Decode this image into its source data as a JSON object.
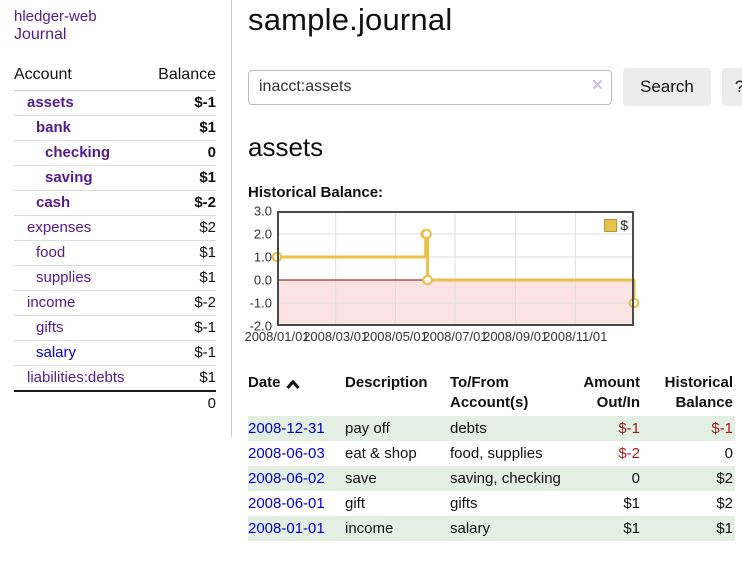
{
  "theme": {
    "purple": "#551a8b",
    "blue": "#0000cc",
    "negative": "#9d1d1d",
    "negative_muted": "#c08585",
    "row_green": "#e2efe2",
    "button_bg": "#ececec",
    "gold": "#e8c14b"
  },
  "sidebar": {
    "brand": "hledger-web",
    "nav_journal": "Journal",
    "accounts": {
      "header_account": "Account",
      "header_balance": "Balance",
      "rows": [
        {
          "account": "assets",
          "balance": "$-1",
          "level": 1,
          "bold": true,
          "account_class": "purple",
          "balance_class": "neg-strong"
        },
        {
          "account": "bank",
          "balance": "$1",
          "level": 2,
          "bold": true,
          "account_class": "purple",
          "balance_class": ""
        },
        {
          "account": "checking",
          "balance": "0",
          "level": 3,
          "bold": true,
          "account_class": "purple",
          "balance_class": ""
        },
        {
          "account": "saving",
          "balance": "$1",
          "level": 3,
          "bold": true,
          "account_class": "purple",
          "balance_class": ""
        },
        {
          "account": "cash",
          "balance": "$-2",
          "level": 2,
          "bold": true,
          "account_class": "purple",
          "balance_class": "neg-strong"
        },
        {
          "account": "expenses",
          "balance": "$2",
          "level": 1,
          "bold": false,
          "account_class": "purple",
          "balance_class": ""
        },
        {
          "account": "food",
          "balance": "$1",
          "level": 2,
          "bold": false,
          "account_class": "purple",
          "balance_class": ""
        },
        {
          "account": "supplies",
          "balance": "$1",
          "level": 2,
          "bold": false,
          "account_class": "purple",
          "balance_class": ""
        },
        {
          "account": "income",
          "balance": "$-2",
          "level": 1,
          "bold": false,
          "account_class": "purple",
          "balance_class": "neg-muted"
        },
        {
          "account": "gifts",
          "balance": "$-1",
          "level": 2,
          "bold": false,
          "account_class": "purple",
          "balance_class": "neg-muted"
        },
        {
          "account": "salary",
          "balance": "$-1",
          "level": 2,
          "bold": false,
          "account_class": "blue",
          "balance_class": "neg-muted"
        },
        {
          "account": "liabilities:debts",
          "balance": "$1",
          "level": 1,
          "bold": false,
          "account_class": "purple",
          "balance_class": ""
        }
      ],
      "total": "0"
    }
  },
  "main": {
    "title": "sample.journal",
    "search": {
      "value": "inacct:assets",
      "clear_icon": "×",
      "button_label": "Search",
      "help_label": "?"
    },
    "account_heading": "assets"
  },
  "chart_data": {
    "type": "line",
    "title": "Historical Balance:",
    "series": [
      {
        "name": "$",
        "step": true,
        "points": [
          [
            "2008-01-01",
            1
          ],
          [
            "2008-06-01",
            2
          ],
          [
            "2008-06-02",
            2
          ],
          [
            "2008-06-03",
            0
          ],
          [
            "2008-12-31",
            -1
          ]
        ]
      }
    ],
    "xlim": [
      "2008-01-01",
      "2008-12-31"
    ],
    "ylim": [
      -2,
      3
    ],
    "yticks": [
      3,
      2,
      1,
      0,
      -1,
      -2
    ],
    "ytick_labels": [
      "3.0",
      "2.0",
      "1.0",
      "0.0",
      "-1.0",
      "-2.0"
    ],
    "xticks": [
      "2008-01-01",
      "2008-03-01",
      "2008-05-01",
      "2008-07-01",
      "2008-09-01",
      "2008-11-01"
    ],
    "xtick_labels": [
      "2008/01/01",
      "2008/03/01",
      "2008/05/01",
      "2008/07/01",
      "2008/09/01",
      "2008/11/01"
    ],
    "legend": {
      "label": "$",
      "position": "top-right"
    },
    "grid": true,
    "negative_region_shaded": true
  },
  "transactions": {
    "headers": {
      "date": "Date",
      "description": "Description",
      "tofrom": [
        "To/From",
        "Account(s)"
      ],
      "amount": [
        "Amount",
        "Out/In"
      ],
      "balance": [
        "Historical",
        "Balance"
      ]
    },
    "sort": "ascending",
    "rows": [
      {
        "date": "2008-12-31",
        "description": "pay off",
        "accounts": "debts",
        "amount": "$-1",
        "balance": "$-1",
        "shaded": true,
        "amount_neg": true,
        "balance_neg": true
      },
      {
        "date": "2008-06-03",
        "description": "eat & shop",
        "accounts": "food, supplies",
        "amount": "$-2",
        "balance": "0",
        "shaded": false,
        "amount_neg": true,
        "balance_neg": false
      },
      {
        "date": "2008-06-02",
        "description": "save",
        "accounts": "saving, checking",
        "amount": "0",
        "balance": "$2",
        "shaded": true,
        "amount_neg": false,
        "balance_neg": false
      },
      {
        "date": "2008-06-01",
        "description": "gift",
        "accounts": "gifts",
        "amount": "$1",
        "balance": "$2",
        "shaded": false,
        "amount_neg": false,
        "balance_neg": false
      },
      {
        "date": "2008-01-01",
        "description": "income",
        "accounts": "salary",
        "amount": "$1",
        "balance": "$1",
        "shaded": true,
        "amount_neg": false,
        "balance_neg": false
      }
    ]
  }
}
